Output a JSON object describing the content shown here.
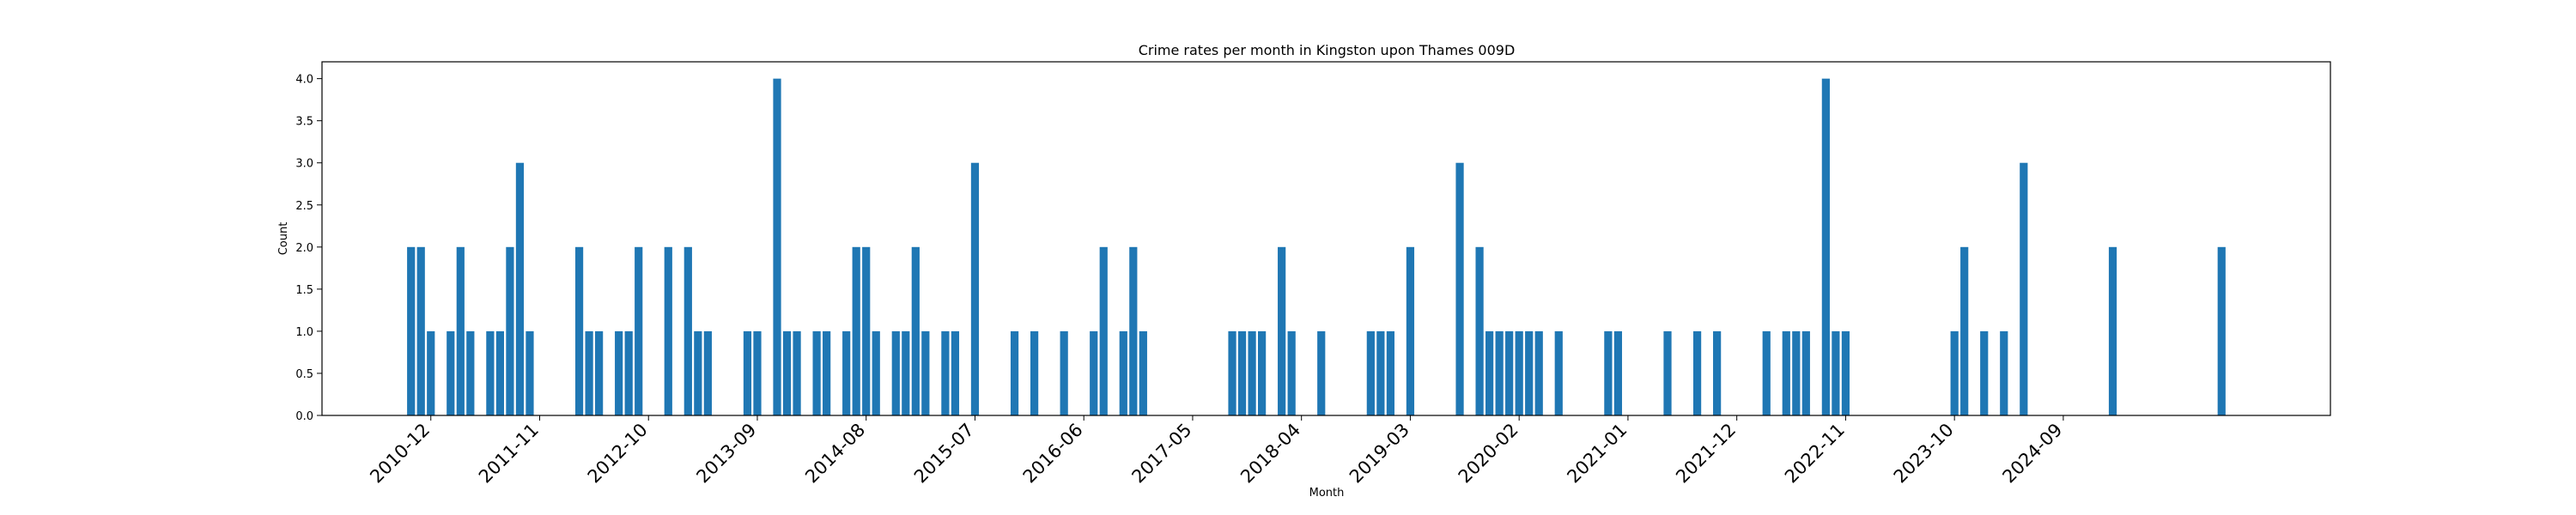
{
  "colors": {
    "bar": "#1f77b4",
    "axis": "#000000",
    "background": "#ffffff"
  },
  "chart_data": {
    "type": "bar",
    "title": "Crime rates per month in Kingston upon Thames 009D",
    "xlabel": "Month",
    "ylabel": "Count",
    "ylim": [
      0,
      4.2
    ],
    "yticks": [
      0.0,
      0.5,
      1.0,
      1.5,
      2.0,
      2.5,
      3.0,
      3.5,
      4.0
    ],
    "ytick_labels": [
      "0.0",
      "0.5",
      "1.0",
      "1.5",
      "2.0",
      "2.5",
      "3.0",
      "3.5",
      "4.0"
    ],
    "xlim": [
      "2010-01",
      "2026-12"
    ],
    "xtick_labels": [
      "2010-12",
      "2011-11",
      "2012-10",
      "2013-09",
      "2014-08",
      "2015-07",
      "2016-06",
      "2017-05",
      "2018-04",
      "2019-03",
      "2020-02",
      "2021-01",
      "2021-12",
      "2022-11",
      "2023-10",
      "2024-09"
    ],
    "grid": false,
    "series": [
      {
        "x": [
          "2010-10",
          "2010-11",
          "2010-12",
          "2011-02",
          "2011-03",
          "2011-04",
          "2011-06",
          "2011-07",
          "2011-08",
          "2011-09",
          "2011-10",
          "2012-03",
          "2012-04",
          "2012-05",
          "2012-07",
          "2012-08",
          "2012-09",
          "2012-12",
          "2013-02",
          "2013-03",
          "2013-04",
          "2013-08",
          "2013-09",
          "2013-11",
          "2013-12",
          "2014-01",
          "2014-03",
          "2014-04",
          "2014-06",
          "2014-07",
          "2014-08",
          "2014-09",
          "2014-11",
          "2014-12",
          "2015-01",
          "2015-02",
          "2015-04",
          "2015-05",
          "2015-07",
          "2015-11",
          "2016-01",
          "2016-04",
          "2016-07",
          "2016-08",
          "2016-10",
          "2016-11",
          "2016-12",
          "2017-09",
          "2017-10",
          "2017-11",
          "2017-12",
          "2018-02",
          "2018-03",
          "2018-06",
          "2018-11",
          "2018-12",
          "2019-01",
          "2019-03",
          "2019-08",
          "2019-10",
          "2019-11",
          "2019-12",
          "2020-01",
          "2020-02",
          "2020-03",
          "2020-04",
          "2020-06",
          "2020-11",
          "2020-12",
          "2021-05",
          "2021-08",
          "2021-10",
          "2022-03",
          "2022-05",
          "2022-06",
          "2022-07",
          "2022-09",
          "2022-10",
          "2022-11",
          "2023-10",
          "2023-11",
          "2024-01",
          "2024-03",
          "2024-05",
          "2025-02",
          "2026-01"
        ],
        "values": [
          2,
          2,
          1,
          1,
          2,
          1,
          1,
          1,
          2,
          3,
          1,
          2,
          1,
          1,
          1,
          1,
          2,
          2,
          2,
          1,
          1,
          1,
          1,
          4,
          1,
          1,
          1,
          1,
          1,
          2,
          2,
          1,
          1,
          1,
          2,
          1,
          1,
          1,
          3,
          1,
          1,
          1,
          1,
          2,
          1,
          2,
          1,
          1,
          1,
          1,
          1,
          2,
          1,
          1,
          1,
          1,
          1,
          2,
          3,
          2,
          1,
          1,
          1,
          1,
          1,
          1,
          1,
          1,
          1,
          1,
          1,
          1,
          1,
          1,
          1,
          1,
          4,
          1,
          1,
          1,
          2,
          1,
          1,
          3,
          2,
          2
        ]
      }
    ]
  }
}
